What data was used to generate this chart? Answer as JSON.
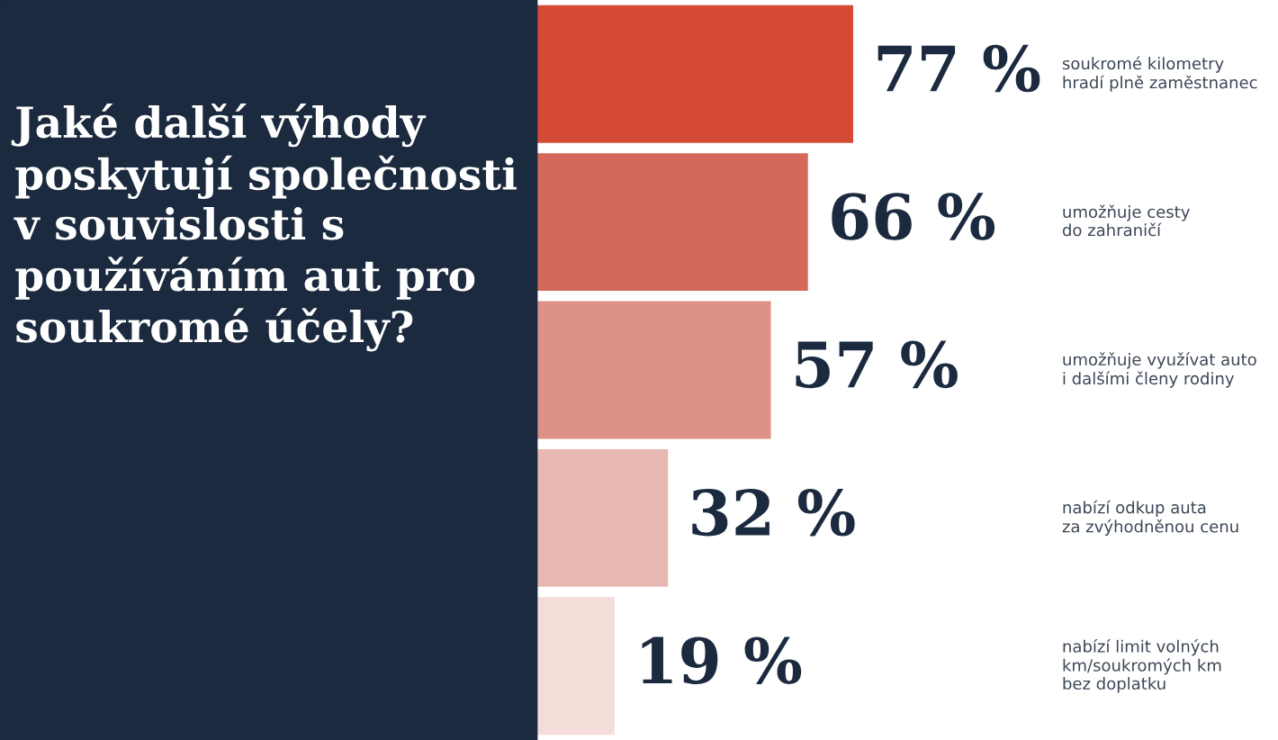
{
  "chart_data": {
    "type": "bar",
    "orientation": "horizontal",
    "title": "Jaké další výhody poskytují společnosti v souvislosti s používáním aut pro soukromé účely?",
    "categories": [
      "soukromé kilometry\nhradí plně zaměstnanec",
      "umožňuje cesty\ndo zahraničí",
      "umožňuje využívat auto\ni dalšími členy rodiny",
      "nabízí odkup auta\nza zvýhodněnou cenu",
      "nabízí limit volných\nkm/soukromých km\nbez doplatku"
    ],
    "values": [
      77,
      66,
      57,
      32,
      19
    ],
    "value_labels": [
      "77 %",
      "66 %",
      "57 %",
      "32 %",
      "19 %"
    ],
    "colors": [
      "#d44a35",
      "#d4695b",
      "#dd9187",
      "#e8b9b2",
      "#f4dcd8"
    ]
  }
}
